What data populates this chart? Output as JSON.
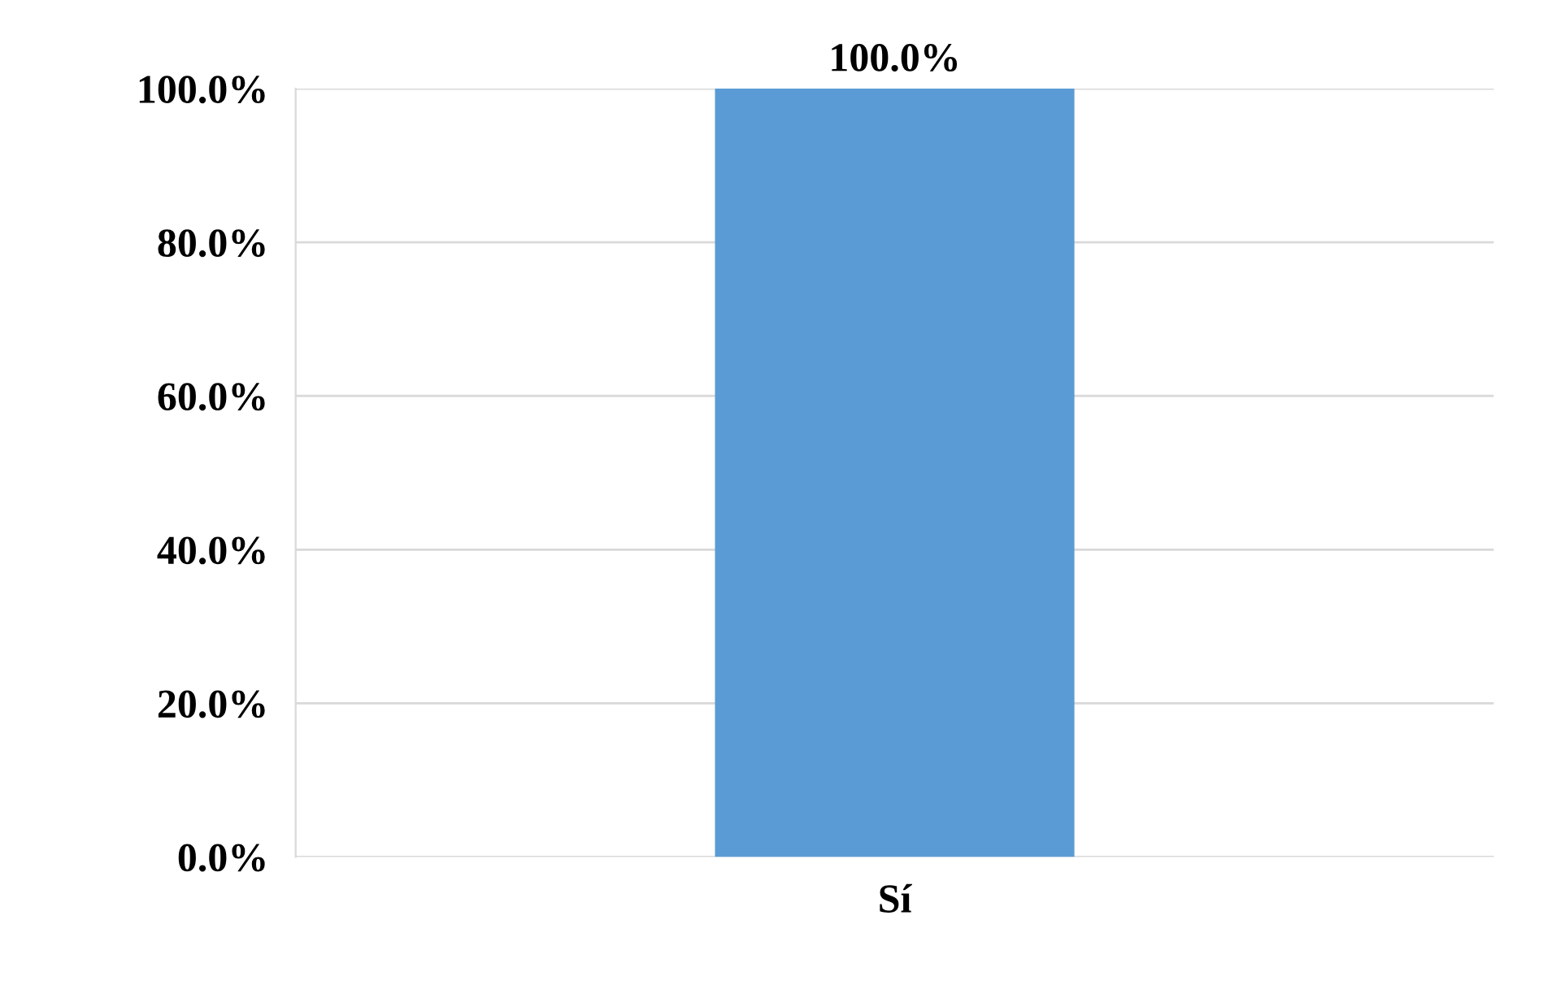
{
  "chart_data": {
    "type": "bar",
    "categories": [
      "Sí"
    ],
    "values": [
      100
    ],
    "color": "#5b9bd5",
    "ylim": [
      0,
      100
    ],
    "yticks": [
      {
        "value": 0,
        "label": "0.0%"
      },
      {
        "value": 20,
        "label": "20.0%"
      },
      {
        "value": 40,
        "label": "40.0%"
      },
      {
        "value": 60,
        "label": "60.0%"
      },
      {
        "value": 80,
        "label": "80.0%"
      },
      {
        "value": 100,
        "label": "100.0%"
      }
    ],
    "value_labels": [
      "100.0%"
    ],
    "grid": "y"
  }
}
